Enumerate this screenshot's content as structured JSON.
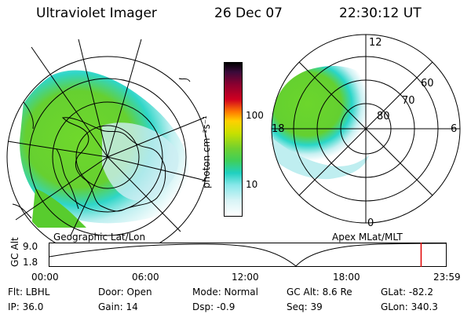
{
  "header": {
    "instrument": "Ultraviolet Imager",
    "date": "26 Dec 07",
    "time": "22:30:12 UT"
  },
  "colorbar": {
    "unit_label": "photon cm⁻²s⁻¹",
    "ticks": [
      "100",
      "10"
    ]
  },
  "left_map": {
    "caption": "Geographic Lat/Lon"
  },
  "right_map": {
    "caption": "Apex  MLat/MLT",
    "mlt_labels": [
      "12",
      "18",
      "6",
      "0"
    ],
    "lat_labels": [
      "60",
      "70",
      "80"
    ]
  },
  "altitude_plot": {
    "ylabel": "GC Alt",
    "yticks": [
      "9.0",
      "1.8"
    ],
    "xticks": [
      "00:00",
      "06:00",
      "12:00",
      "18:00",
      "23:59"
    ],
    "current_time_marker_fraction": 0.9375
  },
  "info": {
    "filter": "Flt: LBHL",
    "ip": "IP: 36.0",
    "door": "Door: Open",
    "gain": "Gain: 14",
    "mode": "Mode: Normal",
    "dsp": "Dsp:    -0.9",
    "gc_alt": "GC Alt: 8.6 Re",
    "seq": "Seq: 39",
    "glat": "GLat: -82.2",
    "glon": "GLon: 340.3"
  },
  "colors": {
    "marker": "#e00000",
    "aurora_green": "#5fd22a",
    "aurora_cyan": "#27d6d0"
  }
}
